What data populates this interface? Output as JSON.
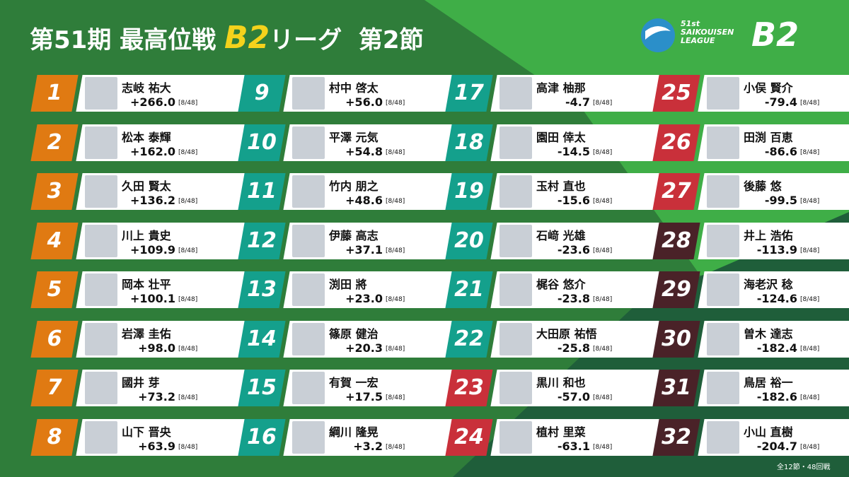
{
  "header": {
    "title_prefix": "第51期 最高位戦",
    "title_league": "B2",
    "title_suffix": "リーグ",
    "round": "第2節"
  },
  "logo": {
    "edition": "51st",
    "name_line1": "SAIKOUISEN",
    "name_line2": "LEAGUE",
    "league": "B2"
  },
  "footer": "全12節・48回戦",
  "players": [
    {
      "rank": 1,
      "name": "志岐 祐大",
      "score": "+266.0",
      "games": "[8/48]",
      "color": "#e07a12"
    },
    {
      "rank": 2,
      "name": "松本 泰輝",
      "score": "+162.0",
      "games": "[8/48]",
      "color": "#e07a12"
    },
    {
      "rank": 3,
      "name": "久田 賢太",
      "score": "+136.2",
      "games": "[8/48]",
      "color": "#e07a12"
    },
    {
      "rank": 4,
      "name": "川上 貴史",
      "score": "+109.9",
      "games": "[8/48]",
      "color": "#e07a12"
    },
    {
      "rank": 5,
      "name": "岡本 壮平",
      "score": "+100.1",
      "games": "[8/48]",
      "color": "#e07a12"
    },
    {
      "rank": 6,
      "name": "岩澤 圭佑",
      "score": "+98.0",
      "games": "[8/48]",
      "color": "#e07a12"
    },
    {
      "rank": 7,
      "name": "國井 芽",
      "score": "+73.2",
      "games": "[8/48]",
      "color": "#e07a12"
    },
    {
      "rank": 8,
      "name": "山下 晋央",
      "score": "+63.9",
      "games": "[8/48]",
      "color": "#e07a12"
    },
    {
      "rank": 9,
      "name": "村中 啓太",
      "score": "+56.0",
      "games": "[8/48]",
      "color": "#14a08c"
    },
    {
      "rank": 10,
      "name": "平澤 元気",
      "score": "+54.8",
      "games": "[8/48]",
      "color": "#14a08c"
    },
    {
      "rank": 11,
      "name": "竹内 朋之",
      "score": "+48.6",
      "games": "[8/48]",
      "color": "#14a08c"
    },
    {
      "rank": 12,
      "name": "伊藤 高志",
      "score": "+37.1",
      "games": "[8/48]",
      "color": "#14a08c"
    },
    {
      "rank": 13,
      "name": "渕田 將",
      "score": "+23.0",
      "games": "[8/48]",
      "color": "#14a08c"
    },
    {
      "rank": 14,
      "name": "篠原 健治",
      "score": "+20.3",
      "games": "[8/48]",
      "color": "#14a08c"
    },
    {
      "rank": 15,
      "name": "有賀 一宏",
      "score": "+17.5",
      "games": "[8/48]",
      "color": "#14a08c"
    },
    {
      "rank": 16,
      "name": "綱川 隆晃",
      "score": "+3.2",
      "games": "[8/48]",
      "color": "#14a08c"
    },
    {
      "rank": 17,
      "name": "高津 柚那",
      "score": "-4.7",
      "games": "[8/48]",
      "color": "#14a08c"
    },
    {
      "rank": 18,
      "name": "園田 倖太",
      "score": "-14.5",
      "games": "[8/48]",
      "color": "#14a08c"
    },
    {
      "rank": 19,
      "name": "玉村 直也",
      "score": "-15.6",
      "games": "[8/48]",
      "color": "#14a08c"
    },
    {
      "rank": 20,
      "name": "石﨑 光雄",
      "score": "-23.6",
      "games": "[8/48]",
      "color": "#14a08c"
    },
    {
      "rank": 21,
      "name": "梶谷 悠介",
      "score": "-23.8",
      "games": "[8/48]",
      "color": "#14a08c"
    },
    {
      "rank": 22,
      "name": "大田原 祐悟",
      "score": "-25.8",
      "games": "[8/48]",
      "color": "#14a08c"
    },
    {
      "rank": 23,
      "name": "黒川 和也",
      "score": "-57.0",
      "games": "[8/48]",
      "color": "#c9303a"
    },
    {
      "rank": 24,
      "name": "植村 里菜",
      "score": "-63.1",
      "games": "[8/48]",
      "color": "#c9303a"
    },
    {
      "rank": 25,
      "name": "小俣 賢介",
      "score": "-79.4",
      "games": "[8/48]",
      "color": "#c9303a"
    },
    {
      "rank": 26,
      "name": "田渕 百恵",
      "score": "-86.6",
      "games": "[8/48]",
      "color": "#c9303a"
    },
    {
      "rank": 27,
      "name": "後藤 悠",
      "score": "-99.5",
      "games": "[8/48]",
      "color": "#c9303a"
    },
    {
      "rank": 28,
      "name": "井上 浩佑",
      "score": "-113.9",
      "games": "[8/48]",
      "color": "#4a2228"
    },
    {
      "rank": 29,
      "name": "海老沢 稔",
      "score": "-124.6",
      "games": "[8/48]",
      "color": "#4a2228"
    },
    {
      "rank": 30,
      "name": "曽木 達志",
      "score": "-182.4",
      "games": "[8/48]",
      "color": "#4a2228"
    },
    {
      "rank": 31,
      "name": "鳥居 裕一",
      "score": "-182.6",
      "games": "[8/48]",
      "color": "#4a2228"
    },
    {
      "rank": 32,
      "name": "小山 直樹",
      "score": "-204.7",
      "games": "[8/48]",
      "color": "#4a2228"
    }
  ]
}
